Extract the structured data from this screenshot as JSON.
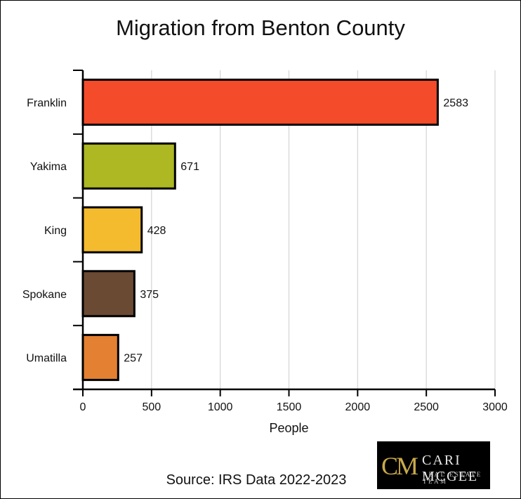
{
  "chart_data": {
    "type": "bar",
    "orientation": "horizontal",
    "title": "Migration from Benton County",
    "xlabel": "People",
    "ylabel": "",
    "categories": [
      "Franklin",
      "Yakima",
      "King",
      "Spokane",
      "Umatilla"
    ],
    "values": [
      2583,
      671,
      428,
      375,
      257
    ],
    "data_labels": [
      "2583",
      "671",
      "428",
      "375",
      "257"
    ],
    "colors": [
      "#f44b2a",
      "#adb822",
      "#f5bb2e",
      "#6b4a34",
      "#e48031"
    ],
    "xlim": [
      0,
      3000
    ],
    "xticks": [
      0,
      500,
      1000,
      1500,
      2000,
      2500,
      3000
    ],
    "xtick_labels": [
      "0",
      "500",
      "1000",
      "1500",
      "2000",
      "2500",
      "3000"
    ],
    "grid": "vertical",
    "legend": "none"
  },
  "source": "Source: IRS Data 2022-2023",
  "logo": {
    "mark": "CM",
    "name": "CARI MCGEE",
    "tagline": "REAL ESTATE TEAM"
  }
}
